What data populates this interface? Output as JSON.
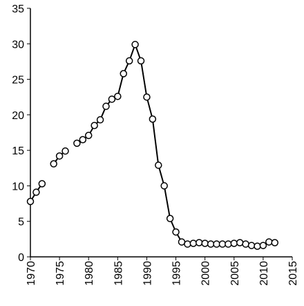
{
  "chart_data": {
    "type": "line",
    "x": [
      1970,
      1971,
      1972,
      1973,
      1974,
      1975,
      1976,
      1977,
      1978,
      1979,
      1980,
      1981,
      1982,
      1983,
      1984,
      1985,
      1986,
      1987,
      1988,
      1989,
      1990,
      1991,
      1992,
      1993,
      1994,
      1995,
      1996,
      1997,
      1998,
      1999,
      2000,
      2001,
      2002,
      2003,
      2004,
      2005,
      2006,
      2007,
      2008,
      2009,
      2010,
      2011,
      2012
    ],
    "series": [
      {
        "color": "#000000",
        "values": [
          7.8,
          9.1,
          10.3,
          null,
          13.1,
          14.2,
          14.9,
          null,
          16.0,
          16.5,
          17.1,
          18.5,
          19.3,
          21.2,
          22.2,
          22.6,
          25.8,
          27.6,
          29.9,
          27.6,
          22.5,
          19.4,
          12.9,
          10.0,
          5.4,
          3.5,
          2.1,
          1.8,
          1.9,
          2.0,
          1.9,
          1.8,
          1.8,
          1.8,
          1.8,
          1.9,
          2.0,
          1.8,
          1.6,
          1.5,
          1.6,
          2.1,
          2.0
        ]
      }
    ],
    "xlim": [
      1970,
      2015
    ],
    "xticks": [
      1970,
      1975,
      1980,
      1985,
      1990,
      1995,
      2000,
      2005,
      2010,
      2015
    ],
    "ylim": [
      0,
      35
    ],
    "yticks": [
      0,
      5,
      10,
      15,
      20,
      25,
      30,
      35
    ],
    "grid": false
  }
}
